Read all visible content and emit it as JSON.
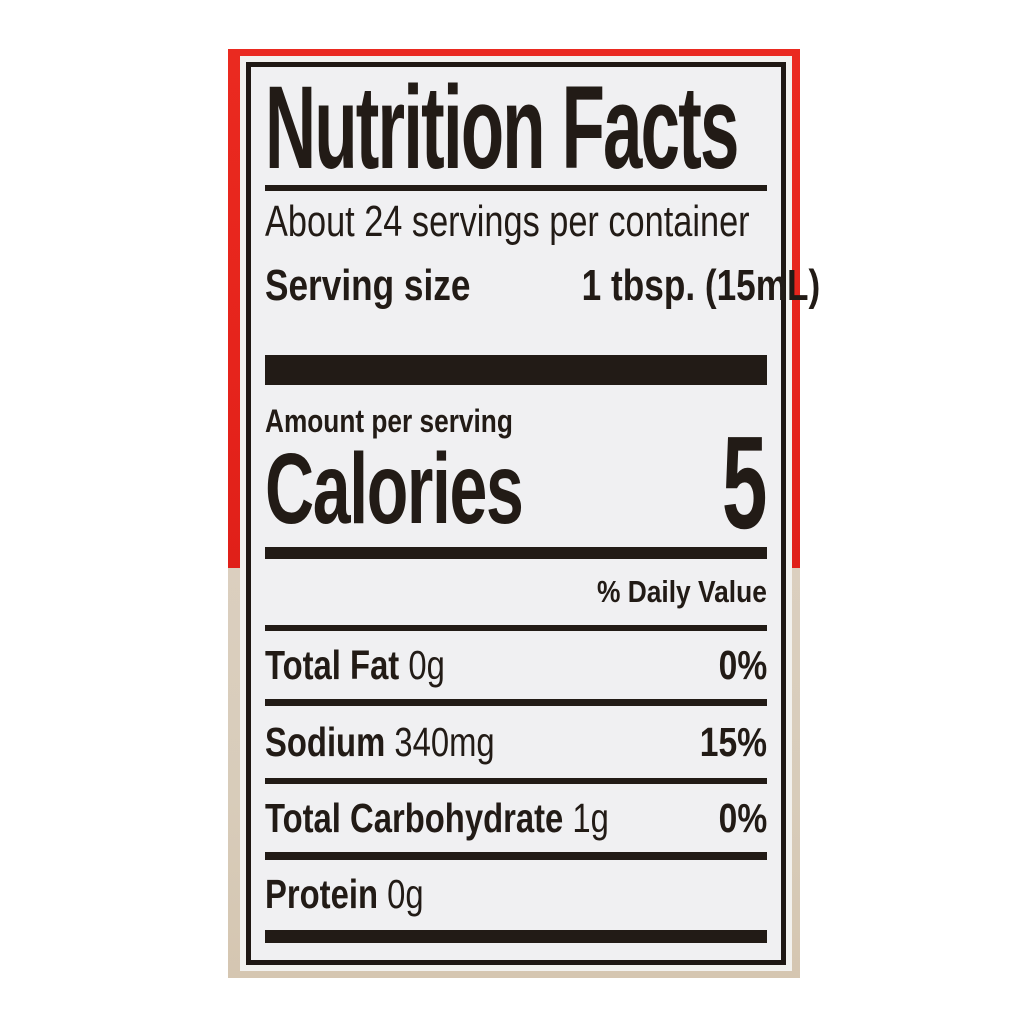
{
  "label": {
    "title": "Nutrition Facts",
    "servings_per_container": "About 24 servings per container",
    "serving_size": {
      "label": "Serving size",
      "value": "1 tbsp. (15mL)"
    },
    "amount_per_serving": "Amount per serving",
    "calories": {
      "label": "Calories",
      "value": "5"
    },
    "daily_value_header": "% Daily Value",
    "rows": [
      {
        "name": "Total Fat",
        "amount": "0g",
        "daily_value": "0%"
      },
      {
        "name": "Sodium",
        "amount": "340mg",
        "daily_value": "15%"
      },
      {
        "name": "Total Carbohydrate",
        "amount": "1g",
        "daily_value": "0%"
      },
      {
        "name": "Protein",
        "amount": "0g",
        "daily_value": ""
      }
    ]
  },
  "colors": {
    "packaging_red": "#e6241c",
    "surface_tan": "#d8ccba",
    "label_background": "#f0f0f2",
    "ink_black": "#221b16"
  }
}
